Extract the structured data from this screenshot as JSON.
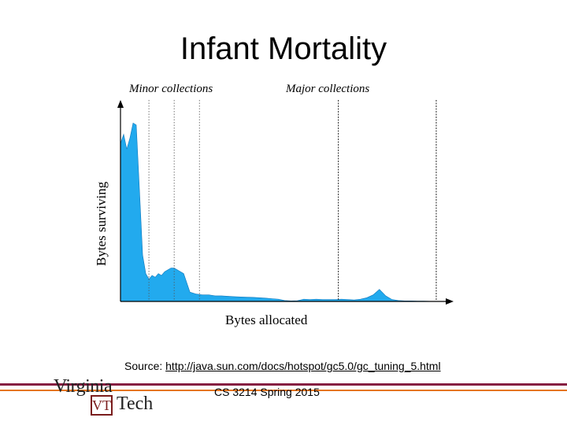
{
  "slide": {
    "title": "Infant Mortality",
    "source_prefix": "Source: ",
    "source_link": "http://java.sun.com/docs/hotspot/gc5.0/gc_tuning_5.html",
    "footer": "CS 3214 Spring 2015",
    "logo": {
      "top_text": "Virginia",
      "bottom_text": "Tech",
      "mark": "VT"
    },
    "colors": {
      "maroon": "#861F41",
      "orange": "#E5751F",
      "fill": "#22AAEE"
    }
  },
  "chart_data": {
    "type": "area",
    "xlabel": "Bytes allocated",
    "ylabel": "Bytes surviving",
    "annotations": [
      "Minor collections",
      "Major collections"
    ],
    "x": [
      0,
      1,
      2,
      3,
      4,
      5,
      6,
      7,
      8,
      9,
      10,
      11,
      12,
      13,
      14,
      15,
      16,
      17,
      18,
      19,
      20,
      21,
      22,
      24,
      26,
      28,
      30,
      32,
      34,
      36,
      38,
      40,
      42,
      44,
      46,
      48,
      50,
      52,
      54,
      56,
      58,
      60,
      62,
      64,
      66,
      68,
      70,
      72,
      74,
      76,
      78,
      80,
      82,
      84,
      86,
      88,
      90,
      92,
      94,
      96,
      98,
      100
    ],
    "y": [
      85,
      90,
      82,
      88,
      96,
      95,
      60,
      25,
      15,
      12,
      14,
      13,
      15,
      14,
      16,
      17,
      18,
      18,
      17,
      16,
      15,
      10,
      5,
      4,
      3.5,
      3.5,
      3,
      3,
      2.8,
      2.6,
      2.4,
      2.3,
      2.2,
      2.0,
      1.8,
      1.5,
      1.2,
      0.5,
      0.3,
      0.4,
      1.2,
      1.0,
      1.2,
      1.0,
      1.0,
      1.0,
      1.2,
      1.0,
      0.8,
      1.2,
      2.0,
      3.5,
      6.5,
      3.0,
      1.0,
      0.5,
      0.3,
      0.3,
      0.2,
      0.2,
      0.1,
      0
    ],
    "minor_collections_x": [
      9,
      17,
      25
    ],
    "major_collections_x": [
      69,
      100
    ],
    "xlim": [
      0,
      104
    ],
    "ylim": [
      0,
      100
    ],
    "grid": false,
    "legend": "none"
  }
}
